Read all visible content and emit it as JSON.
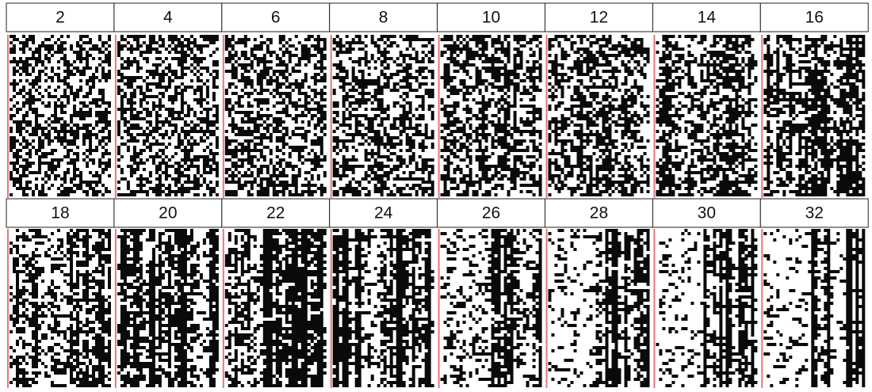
{
  "rows": [
    {
      "labels": [
        "2",
        "4",
        "6",
        "8",
        "10",
        "12",
        "14",
        "16"
      ]
    },
    {
      "labels": [
        "18",
        "20",
        "22",
        "24",
        "26",
        "28",
        "30",
        "32"
      ]
    }
  ]
}
